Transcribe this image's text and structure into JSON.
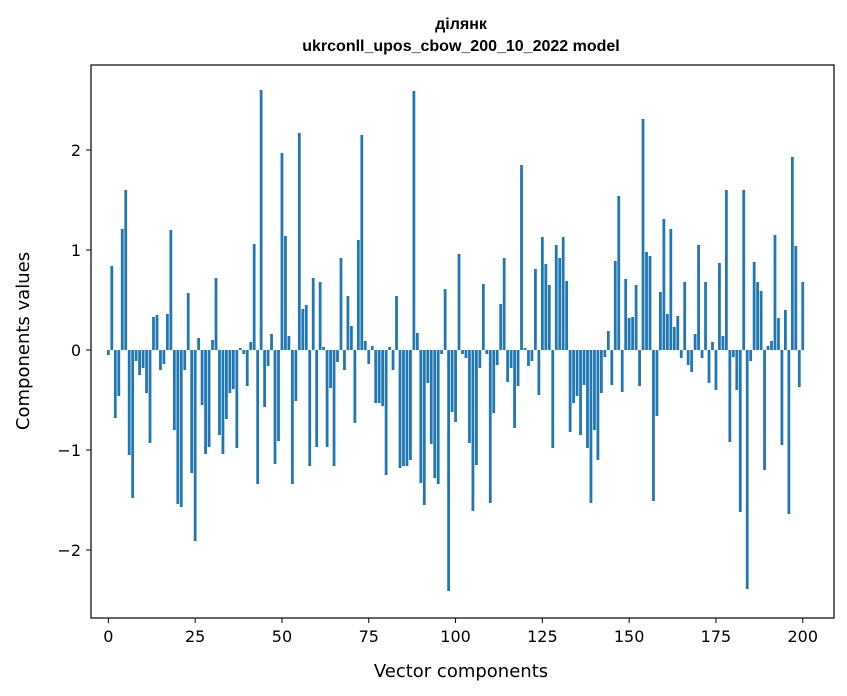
{
  "chart_data": {
    "type": "bar",
    "title": "ділянк",
    "subtitle": "ukrconll_upos_cbow_200_10_2022 model",
    "xlabel": "Vector components",
    "ylabel": "Components values",
    "xlim": [
      -5,
      209
    ],
    "ylim": [
      -2.68,
      2.85
    ],
    "xticks": [
      0,
      25,
      50,
      75,
      100,
      125,
      150,
      175,
      200
    ],
    "yticks": [
      -2,
      -1,
      0,
      1,
      2
    ],
    "ytick_labels": [
      "−2",
      "−1",
      "0",
      "1",
      "2"
    ],
    "bar_color": "#1f77b4",
    "values": [
      -0.05,
      0.84,
      -0.68,
      -0.46,
      1.21,
      1.6,
      -1.05,
      -1.48,
      -0.11,
      -0.25,
      -0.18,
      -0.43,
      -0.93,
      0.33,
      0.35,
      -0.2,
      -0.14,
      0.36,
      1.2,
      -0.8,
      -1.54,
      -1.57,
      -0.2,
      0.57,
      -1.23,
      -1.91,
      0.12,
      -0.55,
      -1.04,
      -0.97,
      0.1,
      0.72,
      -0.85,
      -1.04,
      -0.69,
      -0.43,
      -0.39,
      -0.98,
      0.02,
      -0.04,
      -0.36,
      0.08,
      1.06,
      -1.34,
      2.6,
      -0.57,
      -0.16,
      0.16,
      -1.14,
      -0.91,
      1.97,
      1.14,
      0.14,
      -1.34,
      -0.51,
      2.17,
      0.41,
      0.45,
      -1.16,
      0.72,
      -0.97,
      0.68,
      0.03,
      -0.97,
      -0.38,
      -1.16,
      -0.12,
      0.92,
      -0.2,
      0.54,
      0.24,
      -0.73,
      1.1,
      2.15,
      0.09,
      -0.14,
      0.04,
      -0.53,
      -0.53,
      -0.56,
      -1.25,
      0.03,
      -0.2,
      0.54,
      -1.18,
      -1.16,
      -1.16,
      -1.1,
      2.59,
      0.17,
      -1.33,
      -1.55,
      -0.33,
      -0.94,
      -1.28,
      -1.34,
      -0.04,
      0.61,
      -2.41,
      -0.62,
      -0.72,
      0.96,
      -0.04,
      -0.08,
      -0.93,
      -1.61,
      -1.15,
      -0.18,
      0.66,
      -0.04,
      -1.53,
      -0.63,
      -0.15,
      0.46,
      0.92,
      -0.32,
      -0.18,
      -0.78,
      -0.36,
      1.85,
      0.02,
      -0.16,
      -0.11,
      0.81,
      -0.45,
      1.13,
      0.86,
      0.65,
      -0.98,
      1.05,
      0.92,
      1.13,
      0.69,
      -0.82,
      -0.53,
      -0.46,
      -0.85,
      -0.35,
      -0.98,
      -1.53,
      -0.8,
      -1.1,
      -0.43,
      -0.07,
      0.19,
      -0.35,
      0.89,
      1.54,
      -0.42,
      0.71,
      0.32,
      0.33,
      0.65,
      -0.36,
      2.31,
      0.98,
      0.94,
      -1.51,
      -0.66,
      0.58,
      1.31,
      0.36,
      1.21,
      0.23,
      0.34,
      -0.08,
      0.68,
      -0.15,
      -0.22,
      0.16,
      1.05,
      -0.08,
      0.68,
      -0.33,
      0.08,
      -0.4,
      0.87,
      0.14,
      1.6,
      -0.92,
      -0.07,
      -0.4,
      -1.62,
      1.6,
      -2.39,
      -0.11,
      0.88,
      0.68,
      0.59,
      -1.2,
      0.04,
      0.09,
      1.15,
      0.32,
      -0.95,
      0.4,
      -1.64,
      1.93,
      1.04,
      -0.37,
      0.68
    ]
  }
}
